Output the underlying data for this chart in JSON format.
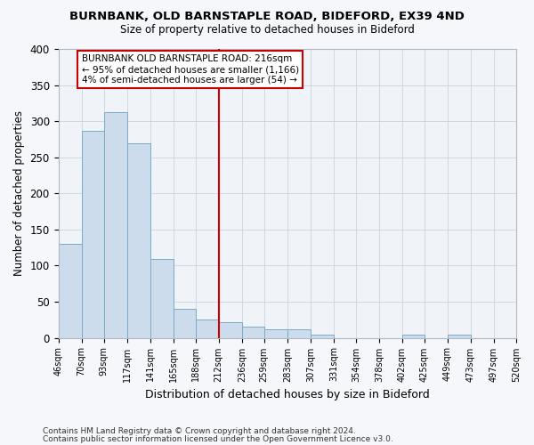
{
  "title": "BURNBANK, OLD BARNSTAPLE ROAD, BIDEFORD, EX39 4ND",
  "subtitle": "Size of property relative to detached houses in Bideford",
  "xlabel": "Distribution of detached houses by size in Bideford",
  "ylabel": "Number of detached properties",
  "bar_color": "#ccdcec",
  "bar_edge_color": "#7aaac8",
  "bin_labels": [
    "46sqm",
    "70sqm",
    "93sqm",
    "117sqm",
    "141sqm",
    "165sqm",
    "188sqm",
    "212sqm",
    "236sqm",
    "259sqm",
    "283sqm",
    "307sqm",
    "331sqm",
    "354sqm",
    "378sqm",
    "402sqm",
    "425sqm",
    "449sqm",
    "473sqm",
    "497sqm",
    "520sqm"
  ],
  "bin_edges": [
    46,
    70,
    93,
    117,
    141,
    165,
    188,
    212,
    236,
    259,
    283,
    307,
    331,
    354,
    378,
    402,
    425,
    449,
    473,
    497,
    520
  ],
  "bar_heights": [
    130,
    287,
    313,
    269,
    109,
    40,
    25,
    22,
    15,
    12,
    12,
    5,
    0,
    0,
    0,
    5,
    0,
    5,
    0,
    0,
    0
  ],
  "vline_x": 212,
  "vline_color": "#cc0000",
  "annotation_line1": "BURNBANK OLD BARNSTAPLE ROAD: 216sqm",
  "annotation_line2": "← 95% of detached houses are smaller (1,166)",
  "annotation_line3": "4% of semi-detached houses are larger (54) →",
  "annotation_box_color": "#ffffff",
  "annotation_box_edge_color": "#cc0000",
  "ylim": [
    0,
    400
  ],
  "yticks": [
    0,
    50,
    100,
    150,
    200,
    250,
    300,
    350,
    400
  ],
  "footer1": "Contains HM Land Registry data © Crown copyright and database right 2024.",
  "footer2": "Contains public sector information licensed under the Open Government Licence v3.0.",
  "bg_color": "#f5f7fa",
  "plot_bg_color": "#f0f4f8",
  "grid_color": "#c8d4e0"
}
